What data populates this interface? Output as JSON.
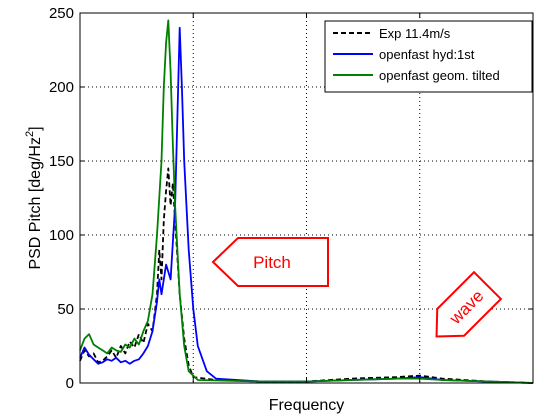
{
  "chart_data": {
    "type": "line",
    "xlabel": "Frequency",
    "ylabel": "PSD Pitch [deg/Hz",
    "ylabel_superscript": "2",
    "ylabel_suffix": "]",
    "ylim": [
      0,
      250
    ],
    "yticks": [
      "0",
      "50",
      "100",
      "150",
      "200",
      "250"
    ],
    "xlim": [
      0,
      1
    ],
    "xtick_values": [
      0.25,
      0.5,
      0.75
    ],
    "xtick_labels_shown": false,
    "grid": true,
    "legend_position": "top-right",
    "series": [
      {
        "name": "Exp 11.4m/s",
        "color": "#000000",
        "dash": "dashed",
        "points": [
          [
            0.0,
            15
          ],
          [
            0.01,
            22
          ],
          [
            0.02,
            18
          ],
          [
            0.03,
            20
          ],
          [
            0.04,
            14
          ],
          [
            0.05,
            15
          ],
          [
            0.06,
            18
          ],
          [
            0.07,
            22
          ],
          [
            0.08,
            17
          ],
          [
            0.09,
            25
          ],
          [
            0.1,
            20
          ],
          [
            0.11,
            28
          ],
          [
            0.12,
            24
          ],
          [
            0.13,
            33
          ],
          [
            0.14,
            27
          ],
          [
            0.15,
            40
          ],
          [
            0.16,
            35
          ],
          [
            0.17,
            60
          ],
          [
            0.175,
            90
          ],
          [
            0.18,
            70
          ],
          [
            0.185,
            110
          ],
          [
            0.19,
            130
          ],
          [
            0.195,
            145
          ],
          [
            0.2,
            120
          ],
          [
            0.205,
            135
          ],
          [
            0.21,
            110
          ],
          [
            0.215,
            85
          ],
          [
            0.22,
            60
          ],
          [
            0.23,
            30
          ],
          [
            0.24,
            12
          ],
          [
            0.25,
            4
          ],
          [
            0.3,
            2
          ],
          [
            0.4,
            1
          ],
          [
            0.5,
            1
          ],
          [
            0.6,
            3
          ],
          [
            0.7,
            4
          ],
          [
            0.75,
            5
          ],
          [
            0.8,
            3
          ],
          [
            0.9,
            1
          ],
          [
            1.0,
            0
          ]
        ]
      },
      {
        "name": "openfast hyd:1st",
        "color": "#0000ff",
        "dash": "solid",
        "points": [
          [
            0.0,
            17
          ],
          [
            0.01,
            24
          ],
          [
            0.02,
            19
          ],
          [
            0.03,
            16
          ],
          [
            0.04,
            13
          ],
          [
            0.05,
            14
          ],
          [
            0.06,
            16
          ],
          [
            0.07,
            15
          ],
          [
            0.08,
            17
          ],
          [
            0.09,
            14
          ],
          [
            0.1,
            15
          ],
          [
            0.11,
            13
          ],
          [
            0.12,
            15
          ],
          [
            0.13,
            16
          ],
          [
            0.14,
            20
          ],
          [
            0.15,
            25
          ],
          [
            0.16,
            35
          ],
          [
            0.17,
            55
          ],
          [
            0.175,
            70
          ],
          [
            0.18,
            60
          ],
          [
            0.19,
            80
          ],
          [
            0.2,
            70
          ],
          [
            0.21,
            120
          ],
          [
            0.215,
            180
          ],
          [
            0.22,
            240
          ],
          [
            0.225,
            200
          ],
          [
            0.23,
            150
          ],
          [
            0.24,
            90
          ],
          [
            0.25,
            50
          ],
          [
            0.26,
            25
          ],
          [
            0.28,
            8
          ],
          [
            0.3,
            3
          ],
          [
            0.4,
            1
          ],
          [
            0.5,
            1
          ],
          [
            0.6,
            2
          ],
          [
            0.7,
            3
          ],
          [
            0.75,
            4
          ],
          [
            0.8,
            2
          ],
          [
            0.9,
            1
          ],
          [
            1.0,
            0
          ]
        ]
      },
      {
        "name": "openfast geom. tilted",
        "color": "#008000",
        "dash": "solid",
        "points": [
          [
            0.0,
            22
          ],
          [
            0.01,
            30
          ],
          [
            0.02,
            33
          ],
          [
            0.03,
            26
          ],
          [
            0.04,
            24
          ],
          [
            0.05,
            22
          ],
          [
            0.06,
            20
          ],
          [
            0.07,
            24
          ],
          [
            0.08,
            22
          ],
          [
            0.09,
            21
          ],
          [
            0.1,
            26
          ],
          [
            0.11,
            24
          ],
          [
            0.12,
            30
          ],
          [
            0.13,
            26
          ],
          [
            0.14,
            35
          ],
          [
            0.15,
            42
          ],
          [
            0.16,
            60
          ],
          [
            0.17,
            100
          ],
          [
            0.18,
            150
          ],
          [
            0.185,
            200
          ],
          [
            0.19,
            230
          ],
          [
            0.195,
            245
          ],
          [
            0.2,
            210
          ],
          [
            0.205,
            160
          ],
          [
            0.21,
            120
          ],
          [
            0.22,
            60
          ],
          [
            0.23,
            25
          ],
          [
            0.24,
            8
          ],
          [
            0.26,
            2
          ],
          [
            0.4,
            1
          ],
          [
            0.5,
            1
          ],
          [
            0.6,
            2
          ],
          [
            0.7,
            3
          ],
          [
            0.75,
            3
          ],
          [
            0.8,
            2
          ],
          [
            0.9,
            1
          ],
          [
            1.0,
            0
          ]
        ]
      }
    ],
    "annotations": [
      {
        "text": "Pitch",
        "direction": "left",
        "color": "#ff0000"
      },
      {
        "text": "wave",
        "direction": "down-left",
        "color": "#ff0000"
      }
    ]
  }
}
